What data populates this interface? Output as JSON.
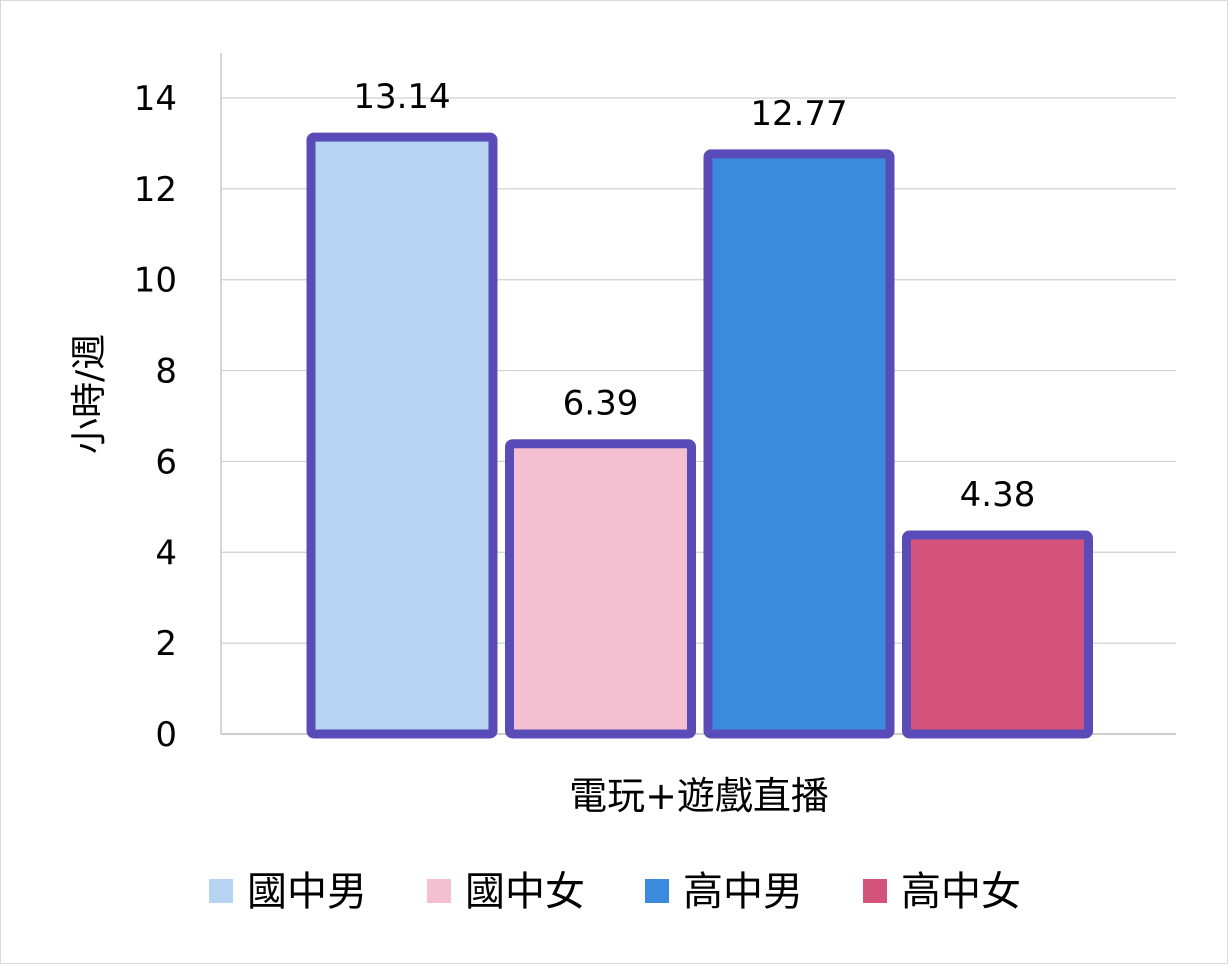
{
  "chart_data": {
    "type": "bar",
    "title": "",
    "xlabel": "電玩+遊戲直播",
    "ylabel": "小時/週",
    "ylim": [
      0,
      14
    ],
    "yticks": [
      0,
      2,
      4,
      6,
      8,
      10,
      12,
      14
    ],
    "grid": true,
    "legend_position": "bottom",
    "bar_outline_color": "#5a4cb8",
    "series": [
      {
        "name": "國中男",
        "value": 13.14,
        "label": "13.14",
        "color": "#b6d4f2"
      },
      {
        "name": "國中女",
        "value": 6.39,
        "label": "6.39",
        "color": "#f3bfd1"
      },
      {
        "name": "高中男",
        "value": 12.77,
        "label": "12.77",
        "color": "#3b8ade"
      },
      {
        "name": "高中女",
        "value": 4.38,
        "label": "4.38",
        "color": "#d4537c"
      }
    ]
  }
}
